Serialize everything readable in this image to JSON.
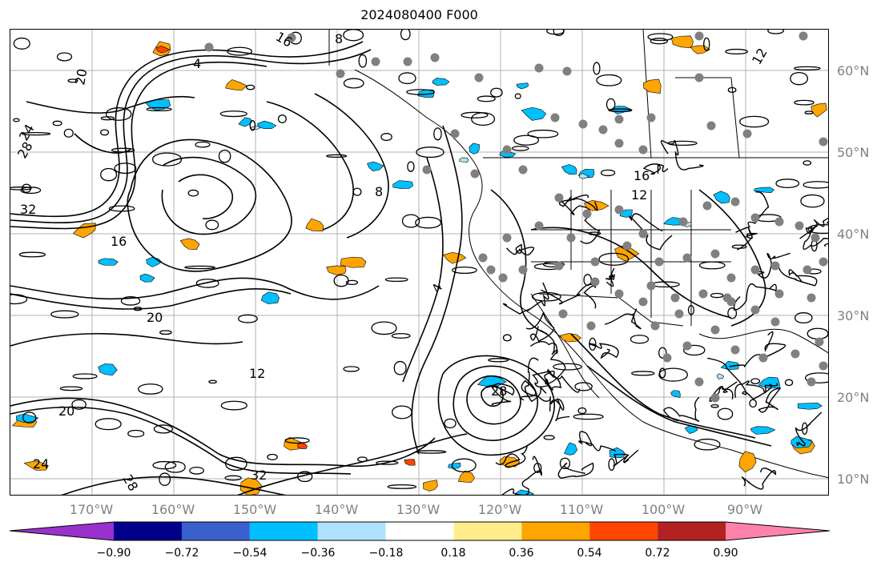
{
  "title": "2024080400 F000",
  "lat_labels": [
    "60°N",
    "50°N",
    "40°N",
    "30°N",
    "20°N",
    "10°N"
  ],
  "lon_labels": [
    "170°W",
    "160°W",
    "150°W",
    "140°W",
    "130°W",
    "120°W",
    "110°W",
    "100°W",
    "90°W"
  ],
  "contour_labels": [
    "16",
    "8",
    "4",
    "12",
    "20",
    "24",
    "28",
    "32",
    "16",
    "12",
    "20",
    "24",
    "28",
    "32",
    "4",
    "8",
    "12",
    "16",
    "20",
    "28"
  ],
  "colorbar": {
    "tick_labels": [
      "−0.90",
      "−0.72",
      "−0.54",
      "−0.36",
      "−0.18",
      "0.18",
      "0.36",
      "0.54",
      "0.72",
      "0.90"
    ],
    "colors": [
      "#9932cc",
      "#00008b",
      "#3a5fcd",
      "#00bfff",
      "#b0e2ff",
      "#ffffff",
      "#ffec8b",
      "#ffa500",
      "#ff4500",
      "#b22222",
      "#ff82ab"
    ]
  },
  "colors": {
    "positive_fill": "#ffa500",
    "strong_positive_fill": "#ff4500",
    "negative_fill": "#00bfff",
    "light_negative_fill": "#b0e2ff",
    "station_dot": "#808080",
    "contour": "#000000",
    "grid": "#b0b0b0"
  }
}
